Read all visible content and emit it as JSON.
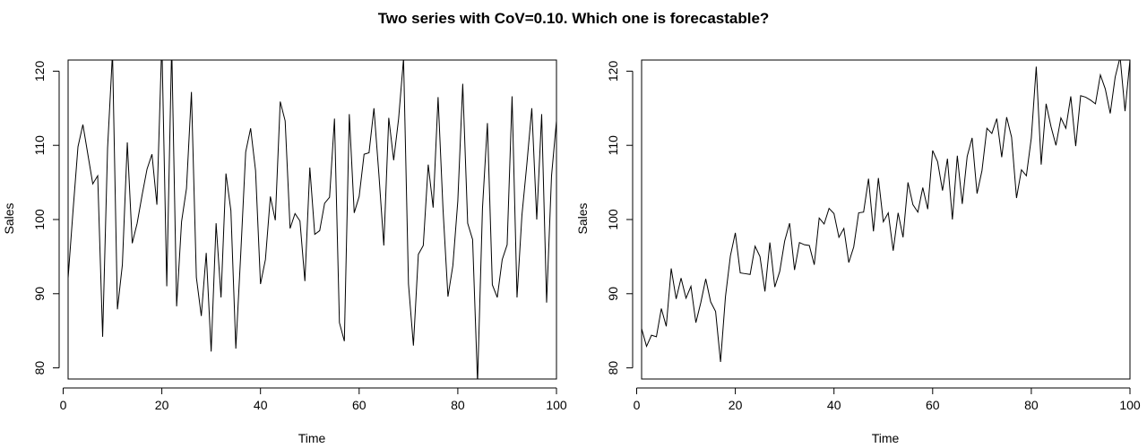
{
  "title": "Two series with CoV=0.10. Which one is forecastable?",
  "chart_data": [
    {
      "type": "line",
      "xlabel": "Time",
      "ylabel": "Sales",
      "xlim": [
        1,
        100
      ],
      "ylim": [
        78.5,
        121.5
      ],
      "xticks": [
        0,
        20,
        40,
        60,
        80,
        100
      ],
      "yticks": [
        80,
        90,
        100,
        110,
        120
      ],
      "x": [
        1,
        2,
        3,
        4,
        5,
        6,
        7,
        8,
        9,
        10,
        11,
        12,
        13,
        14,
        15,
        16,
        17,
        18,
        19,
        20,
        21,
        22,
        23,
        24,
        25,
        26,
        27,
        28,
        29,
        30,
        31,
        32,
        33,
        34,
        35,
        36,
        37,
        38,
        39,
        40,
        41,
        42,
        43,
        44,
        45,
        46,
        47,
        48,
        49,
        50,
        51,
        52,
        53,
        54,
        55,
        56,
        57,
        58,
        59,
        60,
        61,
        62,
        63,
        64,
        65,
        66,
        67,
        68,
        69,
        70,
        71,
        72,
        73,
        74,
        75,
        76,
        77,
        78,
        79,
        80,
        81,
        82,
        83,
        84,
        85,
        86,
        87,
        88,
        89,
        90,
        91,
        92,
        93,
        94,
        95,
        96,
        97,
        98,
        99,
        100
      ],
      "series": [
        {
          "color": "#000000",
          "values": [
            92.1,
            101.2,
            109.8,
            112.8,
            108.8,
            104.8,
            105.9,
            84.2,
            109.6,
            122.5,
            87.9,
            93.9,
            110.4,
            96.8,
            99.5,
            103.3,
            106.8,
            108.8,
            102.0,
            124.0,
            91.0,
            123.5,
            88.3,
            99.7,
            104.2,
            117.2,
            92.2,
            87.0,
            95.5,
            82.2,
            99.5,
            89.5,
            106.2,
            101.2,
            82.6,
            95.4,
            109.1,
            112.3,
            106.6,
            91.3,
            94.6,
            103.1,
            99.9,
            115.9,
            113.3,
            98.8,
            100.8,
            99.8,
            91.7,
            107.0,
            98.0,
            98.5,
            102.2,
            103.0,
            113.6,
            86.1,
            83.6,
            114.2,
            100.9,
            103.1,
            108.8,
            109.0,
            115.0,
            106.1,
            96.5,
            113.7,
            108.0,
            113.6,
            121.7,
            91.3,
            83.0,
            95.3,
            96.5,
            107.4,
            101.6,
            116.5,
            101.4,
            89.6,
            93.8,
            102.5,
            118.3,
            99.5,
            97.3,
            78.0,
            101.5,
            113.0,
            91.2,
            89.5,
            94.6,
            96.6,
            116.6,
            89.5,
            100.6,
            107.5,
            115.0,
            100.0,
            114.2,
            88.8,
            105.9,
            113.3
          ]
        }
      ]
    },
    {
      "type": "line",
      "xlabel": "Time",
      "ylabel": "Sales",
      "xlim": [
        1,
        100
      ],
      "ylim": [
        78.5,
        121.5
      ],
      "xticks": [
        0,
        20,
        40,
        60,
        80,
        100
      ],
      "yticks": [
        80,
        90,
        100,
        110,
        120
      ],
      "x": [
        1,
        2,
        3,
        4,
        5,
        6,
        7,
        8,
        9,
        10,
        11,
        12,
        13,
        14,
        15,
        16,
        17,
        18,
        19,
        20,
        21,
        22,
        23,
        24,
        25,
        26,
        27,
        28,
        29,
        30,
        31,
        32,
        33,
        34,
        35,
        36,
        37,
        38,
        39,
        40,
        41,
        42,
        43,
        44,
        45,
        46,
        47,
        48,
        49,
        50,
        51,
        52,
        53,
        54,
        55,
        56,
        57,
        58,
        59,
        60,
        61,
        62,
        63,
        64,
        65,
        66,
        67,
        68,
        69,
        70,
        71,
        72,
        73,
        74,
        75,
        76,
        77,
        78,
        79,
        80,
        81,
        82,
        83,
        84,
        85,
        86,
        87,
        88,
        89,
        90,
        91,
        92,
        93,
        94,
        95,
        96,
        97,
        98,
        99,
        100
      ],
      "series": [
        {
          "color": "#000000",
          "values": [
            85.3,
            82.9,
            84.4,
            84.2,
            88.0,
            85.6,
            93.4,
            89.3,
            92.1,
            89.4,
            91.0,
            86.1,
            88.8,
            92.0,
            88.9,
            87.6,
            80.8,
            89.6,
            95.1,
            98.2,
            92.8,
            92.7,
            92.6,
            96.4,
            95.0,
            90.3,
            96.9,
            90.9,
            93.0,
            97.1,
            99.5,
            93.2,
            96.9,
            96.6,
            96.5,
            93.9,
            100.2,
            99.4,
            101.5,
            100.8,
            97.6,
            98.8,
            94.2,
            96.3,
            100.9,
            101.0,
            105.5,
            98.4,
            105.6,
            99.7,
            100.9,
            95.8,
            100.9,
            97.6,
            105.0,
            102.0,
            101.0,
            104.3,
            101.4,
            109.3,
            107.8,
            103.9,
            108.2,
            100.0,
            108.6,
            102.1,
            108.5,
            111.0,
            103.5,
            106.6,
            112.3,
            111.6,
            113.6,
            108.4,
            113.8,
            111.1,
            102.9,
            106.7,
            105.9,
            111.0,
            120.6,
            107.4,
            115.6,
            112.5,
            110.0,
            113.7,
            112.3,
            116.6,
            109.9,
            116.7,
            116.5,
            116.1,
            115.6,
            119.5,
            117.6,
            114.3,
            119.2,
            121.9,
            114.6,
            121.5
          ]
        }
      ]
    }
  ]
}
